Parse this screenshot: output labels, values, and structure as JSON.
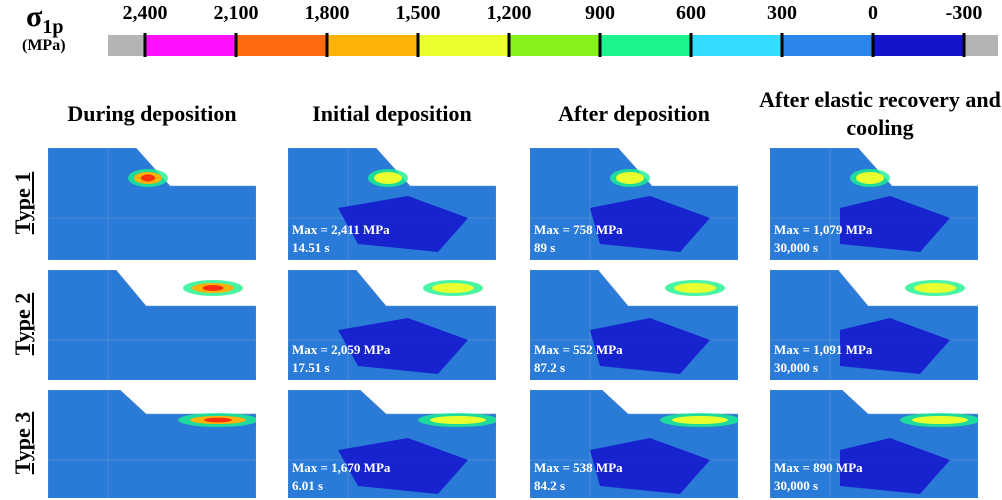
{
  "colorbar": {
    "symbol": "σ",
    "subscript": "1p",
    "unit": "(MPa)",
    "ticks": [
      "2,400",
      "2,100",
      "1,800",
      "1,500",
      "1,200",
      "900",
      "600",
      "300",
      "0",
      "-300"
    ],
    "colors": [
      "#b4b4b4",
      "#ff10ff",
      "#ff6a10",
      "#ffb20a",
      "#e9ff2e",
      "#86f21c",
      "#1cf28e",
      "#34dcff",
      "#2a86ea",
      "#1414cc",
      "#b4b4b4"
    ]
  },
  "columns": [
    "During deposition",
    "Initial deposition",
    "After deposition",
    "After elastic recovery and cooling"
  ],
  "rows": [
    {
      "label": "Type 1",
      "annotations": [
        {
          "max": "Max = 2,411 MPa",
          "time": "14.51 s"
        },
        {
          "max": "Max = 758 MPa",
          "time": "89 s"
        },
        {
          "max": "Max = 1,079 MPa",
          "time": "30,000 s"
        }
      ]
    },
    {
      "label": "Type 2",
      "annotations": [
        {
          "max": "Max = 2,059 MPa",
          "time": "17.51 s"
        },
        {
          "max": "Max = 552 MPa",
          "time": "87.2 s"
        },
        {
          "max": "Max = 1,091 MPa",
          "time": "30,000 s"
        }
      ]
    },
    {
      "label": "Type 3",
      "annotations": [
        {
          "max": "Max = 1,670 MPa",
          "time": "6.01 s"
        },
        {
          "max": "Max = 538 MPa",
          "time": "84.2 s"
        },
        {
          "max": "Max = 890 MPa",
          "time": "30,000 s"
        }
      ]
    }
  ]
}
